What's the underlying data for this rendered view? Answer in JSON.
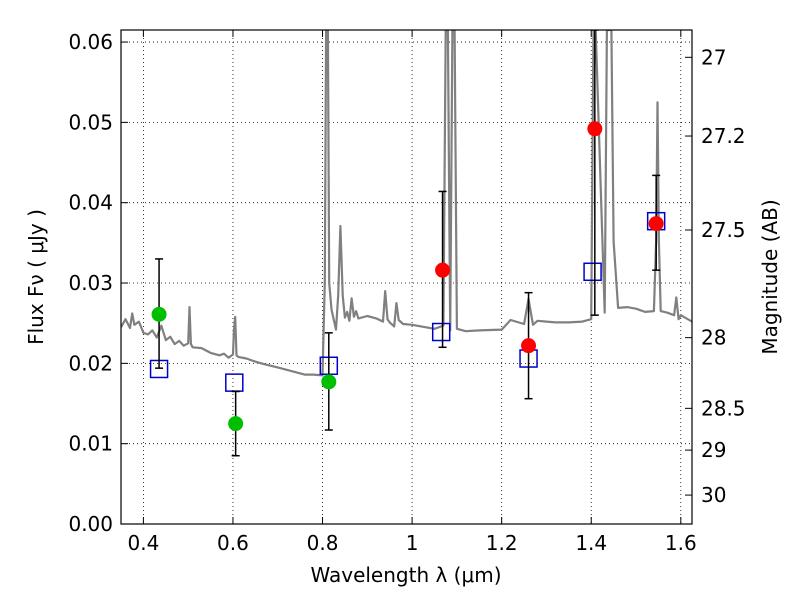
{
  "chart_data": {
    "type": "scatter",
    "xlabel": "Wavelength  λ (μm)",
    "ylabel": "Flux  Fν  ( μJy )",
    "ylabel_right": "Magnitude (AB)",
    "xlim": [
      0.35,
      1.625
    ],
    "ylim": [
      0.0,
      0.0615
    ],
    "grid": true,
    "x_ticks": [
      0.4,
      0.6,
      0.8,
      1.0,
      1.2,
      1.4,
      1.6
    ],
    "x_tick_labels": [
      "0.4",
      "0.6",
      "0.8",
      "1",
      "1.2",
      "1.4",
      "1.6"
    ],
    "y_ticks": [
      0.0,
      0.01,
      0.02,
      0.03,
      0.04,
      0.05,
      0.06
    ],
    "y_tick_labels": [
      "0.00",
      "0.01",
      "0.02",
      "0.03",
      "0.04",
      "0.05",
      "0.06"
    ],
    "right_ticks": [
      {
        "label": "27",
        "flux": 0.0581
      },
      {
        "label": "27.2",
        "flux": 0.0483
      },
      {
        "label": "27.5",
        "flux": 0.0366
      },
      {
        "label": "28",
        "flux": 0.0232
      },
      {
        "label": "28.5",
        "flux": 0.0144
      },
      {
        "label": "29",
        "flux": 0.0092
      },
      {
        "label": "30",
        "flux": 0.0036
      }
    ],
    "model_spectrum": {
      "color": "#808080",
      "x": [
        0.35,
        0.36,
        0.37,
        0.375,
        0.38,
        0.39,
        0.4,
        0.41,
        0.42,
        0.43,
        0.44,
        0.45,
        0.46,
        0.47,
        0.48,
        0.49,
        0.5,
        0.5,
        0.503,
        0.506,
        0.51,
        0.53,
        0.55,
        0.57,
        0.58,
        0.59,
        0.6,
        0.602,
        0.605,
        0.608,
        0.612,
        0.63,
        0.65,
        0.67,
        0.7,
        0.72,
        0.74,
        0.76,
        0.78,
        0.8,
        0.805,
        0.808,
        0.81,
        0.812,
        0.815,
        0.82,
        0.83,
        0.835,
        0.84,
        0.845,
        0.85,
        0.855,
        0.86,
        0.865,
        0.87,
        0.875,
        0.88,
        0.9,
        0.92,
        0.935,
        0.94,
        0.945,
        0.95,
        0.96,
        0.965,
        0.97,
        0.98,
        1.0,
        1.02,
        1.05,
        1.07,
        1.075,
        1.08,
        1.085,
        1.09,
        1.095,
        1.1,
        1.12,
        1.15,
        1.2,
        1.22,
        1.25,
        1.26,
        1.27,
        1.28,
        1.3,
        1.32,
        1.35,
        1.38,
        1.4,
        1.405,
        1.41,
        1.43,
        1.435,
        1.44,
        1.445,
        1.45,
        1.46,
        1.48,
        1.5,
        1.52,
        1.54,
        1.545,
        1.548,
        1.551,
        1.555,
        1.57,
        1.585,
        1.59,
        1.595,
        1.6,
        1.625
      ],
      "y": [
        0.0245,
        0.0255,
        0.0244,
        0.0262,
        0.0248,
        0.0252,
        0.0238,
        0.0236,
        0.0241,
        0.0232,
        0.0247,
        0.0229,
        0.0233,
        0.0224,
        0.0228,
        0.0222,
        0.0225,
        0.0225,
        0.027,
        0.0224,
        0.022,
        0.0219,
        0.0213,
        0.021,
        0.0212,
        0.0207,
        0.0211,
        0.024,
        0.0258,
        0.021,
        0.0208,
        0.0206,
        0.0202,
        0.0199,
        0.0195,
        0.0192,
        0.0189,
        0.0186,
        0.0186,
        0.0185,
        0.0301,
        0.0615,
        0.0615,
        0.0615,
        0.03,
        0.0267,
        0.0242,
        0.0285,
        0.0371,
        0.0285,
        0.0257,
        0.0264,
        0.0253,
        0.0281,
        0.0258,
        0.0265,
        0.0256,
        0.0259,
        0.0256,
        0.0252,
        0.029,
        0.0255,
        0.0251,
        0.0246,
        0.0275,
        0.0254,
        0.0249,
        0.0248,
        0.0246,
        0.0243,
        0.0247,
        0.0615,
        0.0615,
        0.0241,
        0.0615,
        0.0615,
        0.0243,
        0.024,
        0.0241,
        0.0242,
        0.0254,
        0.0249,
        0.028,
        0.0248,
        0.0253,
        0.0252,
        0.0251,
        0.0251,
        0.0252,
        0.0255,
        0.0615,
        0.0615,
        0.0263,
        0.0615,
        0.0615,
        0.0615,
        0.0352,
        0.0269,
        0.027,
        0.0268,
        0.0264,
        0.0265,
        0.0355,
        0.0525,
        0.0352,
        0.0265,
        0.0263,
        0.026,
        0.0282,
        0.0255,
        0.026,
        0.0252
      ]
    },
    "series": [
      {
        "name": "",
        "marker": "circle",
        "color": "#00bf00",
        "points": [
          {
            "x": 0.435,
            "y": 0.0261,
            "yerr_low": 0.0194,
            "yerr_high": 0.033
          },
          {
            "x": 0.606,
            "y": 0.0125,
            "yerr_low": 0.0085,
            "yerr_high": 0.0165
          },
          {
            "x": 0.814,
            "y": 0.0177,
            "yerr_low": 0.0117,
            "yerr_high": 0.0238
          }
        ]
      },
      {
        "name": "",
        "marker": "circle",
        "color": "#ff0000",
        "points": [
          {
            "x": 1.068,
            "y": 0.0316,
            "yerr_low": 0.022,
            "yerr_high": 0.0414
          },
          {
            "x": 1.26,
            "y": 0.0222,
            "yerr_low": 0.0156,
            "yerr_high": 0.0288
          },
          {
            "x": 1.408,
            "y": 0.0492,
            "yerr_low": 0.026,
            "yerr_high": 0.0615
          },
          {
            "x": 1.545,
            "y": 0.0374,
            "yerr_low": 0.0316,
            "yerr_high": 0.0434
          }
        ]
      },
      {
        "name": "",
        "marker": "open-square",
        "color": "#0000cc",
        "points": [
          {
            "x": 0.435,
            "y": 0.0193
          },
          {
            "x": 0.603,
            "y": 0.0176
          },
          {
            "x": 0.814,
            "y": 0.0197
          },
          {
            "x": 1.065,
            "y": 0.0239
          },
          {
            "x": 1.26,
            "y": 0.0206
          },
          {
            "x": 1.403,
            "y": 0.0314
          },
          {
            "x": 1.545,
            "y": 0.0377
          }
        ]
      }
    ]
  }
}
